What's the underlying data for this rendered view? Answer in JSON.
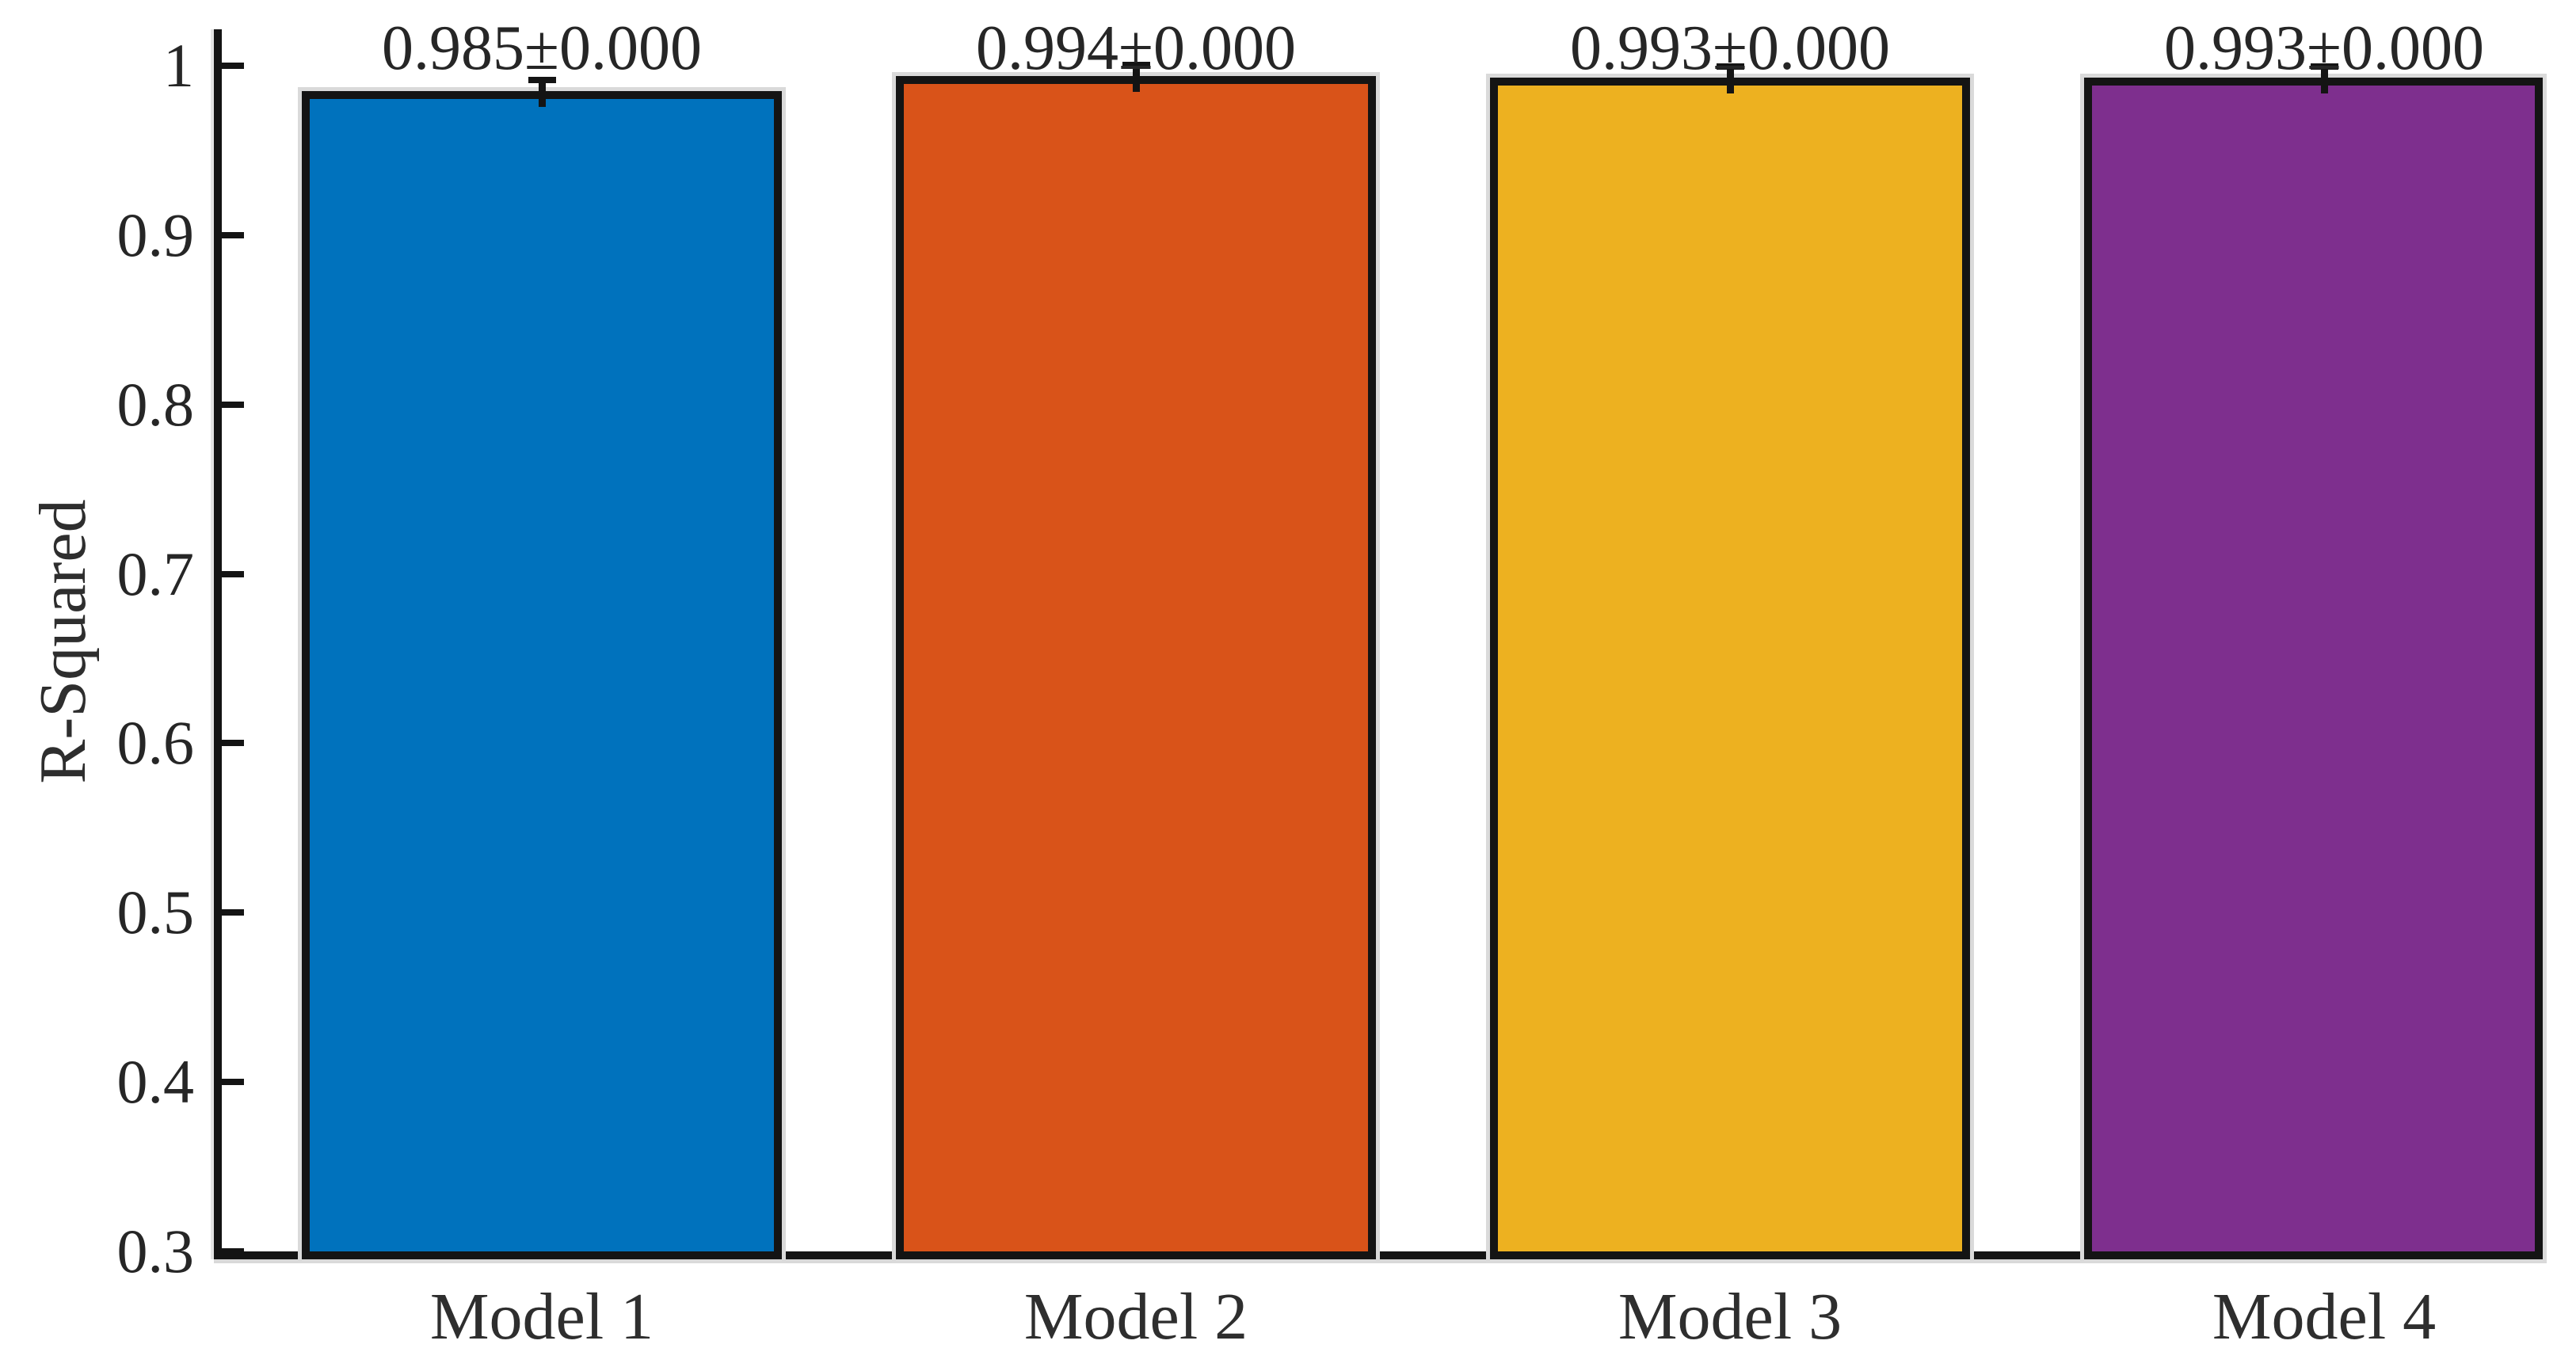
{
  "chart_data": {
    "type": "bar",
    "title": "",
    "categories": [
      "Model 1",
      "Model 2",
      "Model 3",
      "Model 4"
    ],
    "values": [
      0.985,
      0.994,
      0.993,
      0.993
    ],
    "errors": [
      0.0,
      0.0,
      0.0,
      0.0
    ],
    "bar_value_labels": [
      "0.985±0.000",
      "0.994±0.000",
      "0.993±0.000",
      "0.993±0.000"
    ],
    "bar_colors": [
      "#0072BD",
      "#D95319",
      "#EDB120",
      "#7E2F8E"
    ],
    "bar_edge_color": "#141414",
    "xlabel": "",
    "ylabel": "R-Squared",
    "ylim": [
      0.3,
      1.02
    ],
    "yticks": [
      1,
      0.9,
      0.8,
      0.7,
      0.6,
      0.5,
      0.4,
      0.3
    ],
    "ytick_labels": [
      "1",
      "0.9",
      "0.8",
      "0.7",
      "0.6",
      "0.5",
      "0.4",
      "0.3"
    ],
    "grid": false,
    "legend": "none",
    "tick_direction": "in",
    "error_bar_color": "#141414"
  }
}
